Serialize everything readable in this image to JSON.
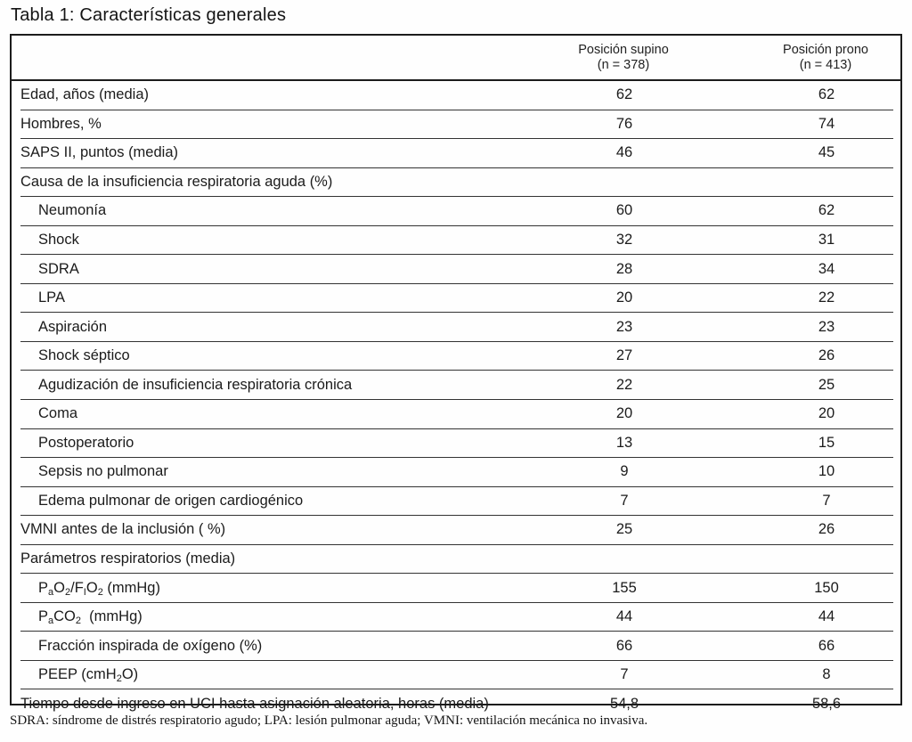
{
  "title": "Tabla 1: Características generales",
  "table": {
    "columns": [
      {
        "line1": "Posición supino",
        "line2": "(n = 378)"
      },
      {
        "line1": "Posición prono",
        "line2": "(n = 413)"
      }
    ],
    "rows": [
      {
        "label": "Edad, años (media)",
        "v1": "62",
        "v2": "62",
        "indent": false
      },
      {
        "label": "Hombres, %",
        "v1": "76",
        "v2": "74",
        "indent": false
      },
      {
        "label": "SAPS II, puntos (media)",
        "v1": "46",
        "v2": "45",
        "indent": false
      },
      {
        "label": "Causa de la insuficiencia respiratoria aguda (%)",
        "v1": "",
        "v2": "",
        "indent": false
      },
      {
        "label": "Neumonía",
        "v1": "60",
        "v2": "62",
        "indent": true
      },
      {
        "label": "Shock",
        "v1": "32",
        "v2": "31",
        "indent": true
      },
      {
        "label": "SDRA",
        "v1": "28",
        "v2": "34",
        "indent": true
      },
      {
        "label": "LPA",
        "v1": "20",
        "v2": "22",
        "indent": true
      },
      {
        "label": "Aspiración",
        "v1": "23",
        "v2": "23",
        "indent": true
      },
      {
        "label": "Shock séptico",
        "v1": "27",
        "v2": "26",
        "indent": true
      },
      {
        "label": "Agudización de insuficiencia respiratoria crónica",
        "v1": "22",
        "v2": "25",
        "indent": true
      },
      {
        "label": "Coma",
        "v1": "20",
        "v2": "20",
        "indent": true
      },
      {
        "label": "Postoperatorio",
        "v1": "13",
        "v2": "15",
        "indent": true
      },
      {
        "label": "Sepsis no pulmonar",
        "v1": "9",
        "v2": "10",
        "indent": true
      },
      {
        "label": "Edema pulmonar de origen cardiogénico",
        "v1": "7",
        "v2": "7",
        "indent": true
      },
      {
        "label": "VMNI antes de la inclusión ( %)",
        "v1": "25",
        "v2": "26",
        "indent": false
      },
      {
        "label": "Parámetros respiratorios (media)",
        "v1": "",
        "v2": "",
        "indent": false
      },
      {
        "label": "P{a}O{2}/F{I}O{2} (mmHg)",
        "v1": "155",
        "v2": "150",
        "indent": true
      },
      {
        "label": "P{a}CO{2}  (mmHg)",
        "v1": "44",
        "v2": "44",
        "indent": true
      },
      {
        "label": "Fracción inspirada de oxígeno (%)",
        "v1": "66",
        "v2": "66",
        "indent": true
      },
      {
        "label": "PEEP (cmH{2}O)",
        "v1": "7",
        "v2": "8",
        "indent": true
      },
      {
        "label": "Tiempo desde ingreso en UCI hasta asignación aleatoria, horas (media)",
        "v1": "54,8",
        "v2": "58,6",
        "indent": false
      }
    ]
  },
  "footnote": "SDRA: síndrome de distrés respiratorio agudo; LPA: lesión pulmonar aguda; VMNI: ventilación mecánica no invasiva."
}
